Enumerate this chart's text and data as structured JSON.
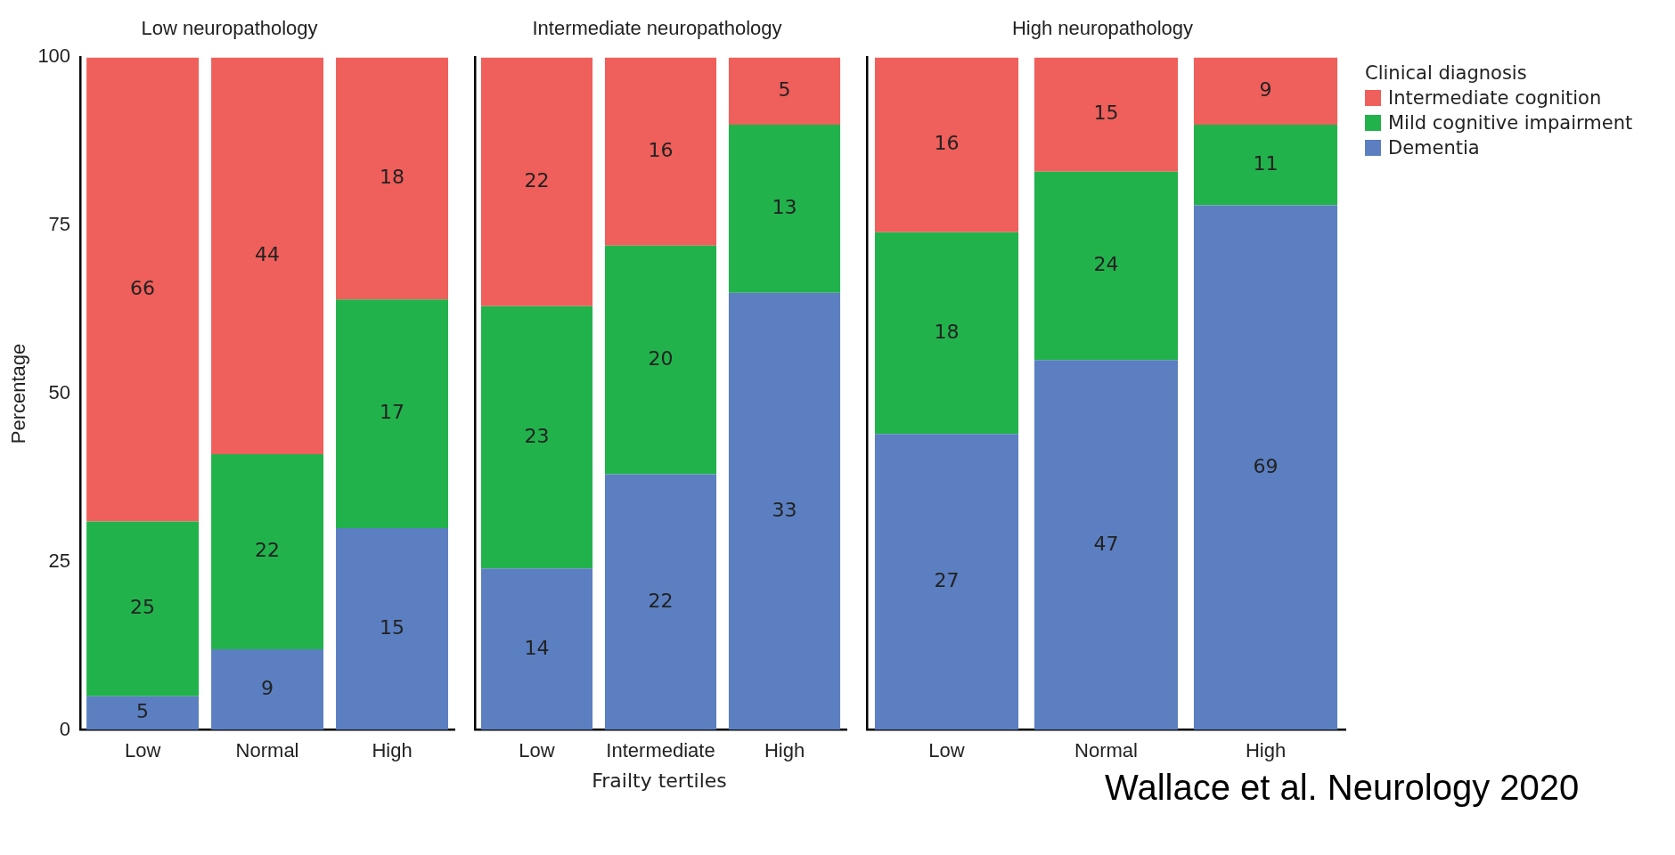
{
  "chart_data": [
    {
      "type": "bar",
      "title": "Low neuropathology",
      "ylabel": "Percentage",
      "categories": [
        "Low",
        "Normal",
        "High"
      ],
      "stacked": true,
      "ylim": [
        0,
        100
      ],
      "yticks": [
        0,
        25,
        50,
        75,
        100
      ],
      "grid": false,
      "legend": false,
      "series": [
        {
          "color": "#5b7fc0",
          "values": [
            5,
            12,
            30
          ]
        },
        {
          "color": "#22b24c",
          "values": [
            26,
            29,
            34
          ]
        },
        {
          "color": "#ef5f5b",
          "values": [
            69,
            59,
            36
          ]
        }
      ],
      "annotations": [
        "5",
        "25",
        "66",
        "9",
        "22",
        "44",
        "15",
        "17",
        "18"
      ]
    },
    {
      "type": "bar",
      "title": "Intermediate neuropathology",
      "xlabel": "Frailty tertiles",
      "categories": [
        "Low",
        "Intermediate",
        "High"
      ],
      "stacked": true,
      "ylim": [
        0,
        100
      ],
      "yticks": [
        0,
        25,
        50,
        75,
        100
      ],
      "tick_labels": "x",
      "grid": false,
      "legend": false,
      "series": [
        {
          "color": "#5b7fc0",
          "values": [
            24,
            38,
            65
          ]
        },
        {
          "color": "#22b24c",
          "values": [
            39,
            34,
            25
          ]
        },
        {
          "color": "#ef5f5b",
          "values": [
            37,
            28,
            10
          ]
        }
      ],
      "annotations": [
        "14",
        "23",
        "22",
        "22",
        "20",
        "16",
        "33",
        "13",
        "5"
      ]
    },
    {
      "type": "bar",
      "title": "High neuropathology",
      "categories": [
        "Low",
        "Normal",
        "High"
      ],
      "stacked": true,
      "ylim": [
        0,
        100
      ],
      "yticks": [
        0,
        25,
        50,
        75,
        100
      ],
      "tick_labels": "x",
      "grid": false,
      "legend": "right",
      "legend_title": "Clinical diagnosis",
      "series": [
        {
          "name": "Dementia",
          "color": "#5b7fc0",
          "values": [
            44,
            55,
            78
          ]
        },
        {
          "name": "Mild cognitive impairment",
          "color": "#22b24c",
          "values": [
            30,
            28,
            12
          ]
        },
        {
          "name": "Intermediate cognition",
          "color": "#ef5f5b",
          "values": [
            26,
            17,
            10
          ]
        }
      ],
      "annotations": [
        "27",
        "18",
        "16",
        "47",
        "24",
        "15",
        "69",
        "11",
        "9",
        "Wallace et al. Neurology 2020"
      ]
    }
  ]
}
